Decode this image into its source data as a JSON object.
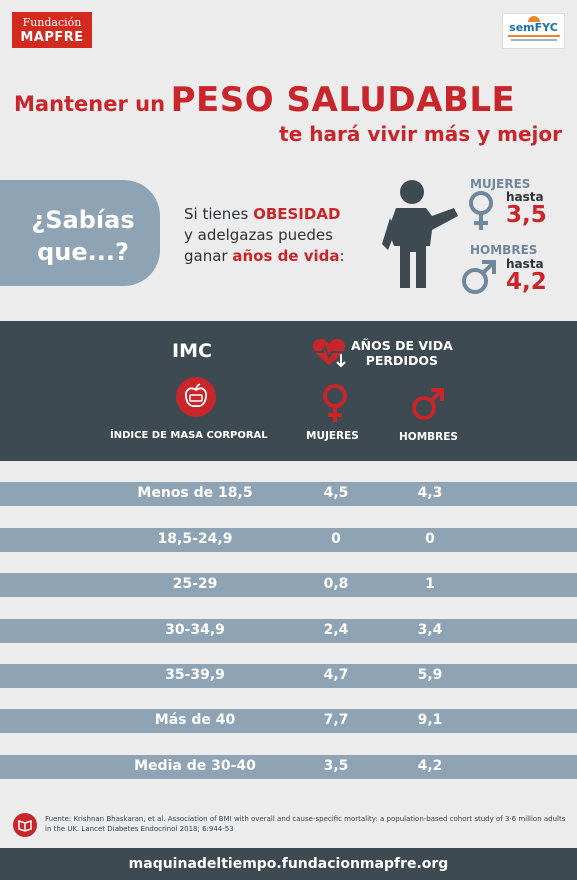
{
  "brand": {
    "fundacion_l1": "Fundación",
    "fundacion_l2": "MAPFRE",
    "semfyc": "semFYC"
  },
  "title": {
    "prefix": "Mantener un",
    "highlight": "PESO SALUDABLE",
    "line2": "te hará vivir más y mejor"
  },
  "sabias": {
    "line1": "¿Sabías",
    "line2": "que...?"
  },
  "intro": {
    "p1": "Si tienes ",
    "p1_red": "OBESIDAD",
    "p2": "y adelgazas puedes",
    "p3": "ganar ",
    "p3_red": "años de vida",
    "p3_end": ":"
  },
  "gain": {
    "mujeres_label": "MUJERES",
    "mujeres_hasta": "hasta",
    "mujeres_value": "3,5",
    "hombres_label": "HOMBRES",
    "hombres_hasta": "hasta",
    "hombres_value": "4,2"
  },
  "table_header": {
    "imc": "IMC",
    "imc_full": "ÍNDICE DE MASA CORPORAL",
    "anos_l1": "AÑOS DE VIDA",
    "anos_l2": "PERDIDOS",
    "mujeres": "MUJERES",
    "hombres": "HOMBRES"
  },
  "rows": [
    {
      "imc": "Menos de 18,5",
      "mujeres": "4,5",
      "hombres": "4,3"
    },
    {
      "imc": "18,5-24,9",
      "mujeres": "0",
      "hombres": "0"
    },
    {
      "imc": "25-29",
      "mujeres": "0,8",
      "hombres": "1"
    },
    {
      "imc": "30-34,9",
      "mujeres": "2,4",
      "hombres": "3,4"
    },
    {
      "imc": "35-39,9",
      "mujeres": "4,7",
      "hombres": "5,9"
    },
    {
      "imc": "Más de 40",
      "mujeres": "7,7",
      "hombres": "9,1"
    },
    {
      "imc": "Media de 30-40",
      "mujeres": "3,5",
      "hombres": "4,2"
    }
  ],
  "fuente": "Fuente: Krishnan Bhaskaran, et al. Association of BMI with overall and cause-specific mortality: a population-based cohort study of 3·6 million adults in the UK. Lancet Diabetes Endocrinol 2018; 6:944-53",
  "footer": "maquinadeltiempo.fundacionmapfre.org",
  "colors": {
    "accent_red": "#c8262b",
    "slate": "#8ea3b3",
    "dark": "#3d4a52",
    "background": "#ececec"
  },
  "icons": [
    "person-pointing-icon",
    "venus-icon",
    "mars-icon",
    "heart-pulse-icon",
    "apple-scale-icon",
    "book-icon"
  ]
}
